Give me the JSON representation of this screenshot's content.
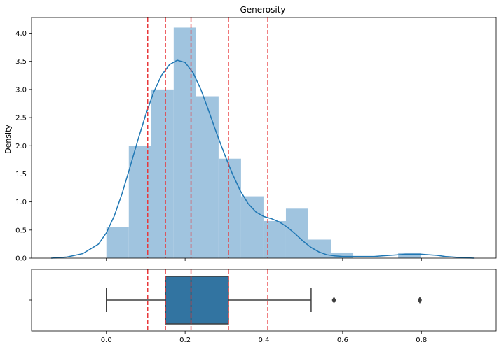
{
  "chart_data": [
    {
      "type": "histogram",
      "title": "Generosity",
      "xlabel": "",
      "ylabel": "Density",
      "xlim": [
        -0.19,
        0.99
      ],
      "ylim": [
        0,
        4.28
      ],
      "grid": false,
      "yticks": [
        0.0,
        0.5,
        1.0,
        1.5,
        2.0,
        2.5,
        3.0,
        3.5,
        4.0
      ],
      "ytick_labels": [
        "0.0",
        "0.5",
        "1.0",
        "1.5",
        "2.0",
        "2.5",
        "3.0",
        "3.5",
        "4.0"
      ],
      "bar_color": "#a0c4df",
      "line_color": "#1f77b4",
      "vline_color": "#e8383b",
      "bins": [
        {
          "x0": 0.0,
          "x1": 0.057,
          "value": 0.55
        },
        {
          "x0": 0.057,
          "x1": 0.114,
          "value": 2.0
        },
        {
          "x0": 0.114,
          "x1": 0.171,
          "value": 3.0
        },
        {
          "x0": 0.171,
          "x1": 0.228,
          "value": 4.1
        },
        {
          "x0": 0.228,
          "x1": 0.285,
          "value": 2.88
        },
        {
          "x0": 0.285,
          "x1": 0.342,
          "value": 1.77
        },
        {
          "x0": 0.342,
          "x1": 0.399,
          "value": 1.1
        },
        {
          "x0": 0.399,
          "x1": 0.456,
          "value": 0.66
        },
        {
          "x0": 0.456,
          "x1": 0.513,
          "value": 0.88
        },
        {
          "x0": 0.513,
          "x1": 0.57,
          "value": 0.33
        },
        {
          "x0": 0.57,
          "x1": 0.627,
          "value": 0.1
        },
        {
          "x0": 0.627,
          "x1": 0.684,
          "value": 0.0
        },
        {
          "x0": 0.684,
          "x1": 0.741,
          "value": 0.0
        },
        {
          "x0": 0.741,
          "x1": 0.798,
          "value": 0.1
        }
      ],
      "kde": {
        "x": [
          -0.14,
          -0.1,
          -0.06,
          -0.02,
          0.0,
          0.02,
          0.04,
          0.06,
          0.08,
          0.1,
          0.12,
          0.14,
          0.16,
          0.18,
          0.2,
          0.22,
          0.24,
          0.26,
          0.28,
          0.3,
          0.32,
          0.34,
          0.36,
          0.38,
          0.4,
          0.42,
          0.44,
          0.46,
          0.48,
          0.5,
          0.52,
          0.54,
          0.56,
          0.58,
          0.6,
          0.62,
          0.64,
          0.66,
          0.68,
          0.7,
          0.72,
          0.74,
          0.76,
          0.78,
          0.8,
          0.82,
          0.84,
          0.86,
          0.88,
          0.9,
          0.935
        ],
        "y": [
          0.0,
          0.02,
          0.08,
          0.25,
          0.45,
          0.75,
          1.15,
          1.62,
          2.1,
          2.55,
          2.95,
          3.25,
          3.44,
          3.52,
          3.48,
          3.3,
          3.0,
          2.62,
          2.22,
          1.85,
          1.5,
          1.2,
          0.97,
          0.82,
          0.74,
          0.7,
          0.64,
          0.55,
          0.43,
          0.3,
          0.19,
          0.11,
          0.06,
          0.04,
          0.03,
          0.03,
          0.03,
          0.03,
          0.03,
          0.04,
          0.05,
          0.06,
          0.07,
          0.07,
          0.07,
          0.06,
          0.05,
          0.03,
          0.02,
          0.01,
          0.0
        ]
      },
      "vlines": [
        0.105,
        0.15,
        0.215,
        0.31,
        0.41
      ]
    },
    {
      "type": "box",
      "xlim": [
        -0.19,
        0.99
      ],
      "xticks": [
        0.0,
        0.2,
        0.4,
        0.6,
        0.8
      ],
      "xtick_labels": [
        "0.0",
        "0.2",
        "0.4",
        "0.6",
        "0.8"
      ],
      "ytick_label": "",
      "box_color": "#3274a1",
      "whisker_low": 0.0,
      "q1": 0.15,
      "median": 0.215,
      "q3": 0.31,
      "whisker_high": 0.52,
      "outliers": [
        0.578,
        0.796
      ],
      "vlines": [
        0.105,
        0.15,
        0.215,
        0.31,
        0.41
      ]
    }
  ]
}
